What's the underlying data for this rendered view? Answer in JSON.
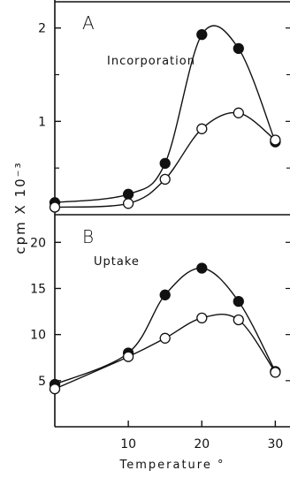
{
  "chart_data": [
    {
      "panel": "A",
      "type": "line",
      "title": "Incorporation",
      "ylabel": "cpm X 10⁻³",
      "xlim": [
        0,
        32
      ],
      "ylim": [
        0,
        2.3
      ],
      "yticks": [
        {
          "value": 1,
          "label": "1"
        },
        {
          "value": 2,
          "label": "2"
        }
      ],
      "minor_yticks": [
        0.5,
        1.5
      ],
      "series": [
        {
          "marker": "filled",
          "x": [
            0,
            10,
            15,
            20,
            25,
            30
          ],
          "y": [
            0.13,
            0.22,
            0.55,
            1.93,
            1.78,
            0.78
          ]
        },
        {
          "marker": "open",
          "x": [
            0,
            10,
            15,
            20,
            25,
            30
          ],
          "y": [
            0.08,
            0.12,
            0.38,
            0.92,
            1.09,
            0.8
          ]
        }
      ]
    },
    {
      "panel": "B",
      "type": "line",
      "title": "Uptake",
      "xlabel": "Temperature  °",
      "xlim": [
        0,
        32
      ],
      "ylim": [
        0,
        23
      ],
      "xticks": [
        {
          "value": 10,
          "label": "10"
        },
        {
          "value": 20,
          "label": "20"
        },
        {
          "value": 30,
          "label": "30"
        }
      ],
      "yticks": [
        {
          "value": 5,
          "label": "5"
        },
        {
          "value": 10,
          "label": "10"
        },
        {
          "value": 15,
          "label": "15"
        },
        {
          "value": 20,
          "label": "20"
        }
      ],
      "series": [
        {
          "marker": "filled",
          "x": [
            0,
            10,
            15,
            20,
            25,
            30
          ],
          "y": [
            4.6,
            8.0,
            14.3,
            17.2,
            13.6,
            6.0
          ]
        },
        {
          "marker": "open",
          "x": [
            0,
            10,
            15,
            20,
            25,
            30
          ],
          "y": [
            4.1,
            7.6,
            9.6,
            11.8,
            11.6,
            5.9
          ]
        }
      ]
    }
  ]
}
